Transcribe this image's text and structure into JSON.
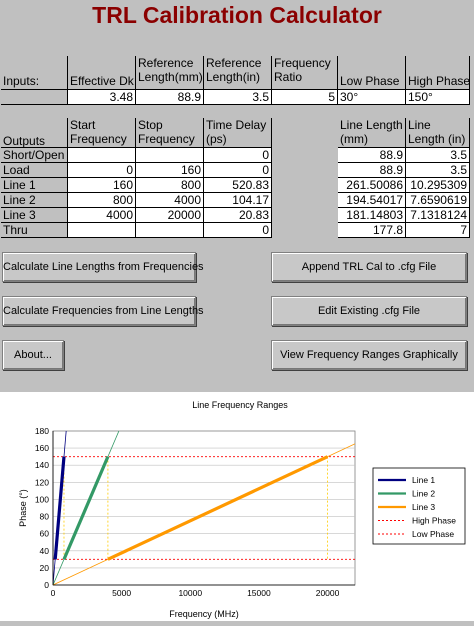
{
  "app_title": "TRL Calibration Calculator",
  "inputs": {
    "row_label": "Inputs:",
    "headers": [
      "Effective Dk",
      "Reference Length(mm)",
      "Reference Length(in)",
      "Frequency Ratio",
      "Low Phase",
      "High Phase"
    ],
    "values": [
      "3.48",
      "88.9",
      "3.5",
      "5",
      "30°",
      "150°"
    ]
  },
  "outputs": {
    "row_label": "Outputs",
    "headers": [
      "Start Frequency",
      "Stop Frequency",
      "Time Delay (ps)"
    ],
    "right_headers": [
      "Line Length (mm)",
      "Line Length (in)"
    ],
    "rows": [
      {
        "name": "Short/Open",
        "start": "",
        "stop": "",
        "delay": "0",
        "mm": "88.9",
        "in": "3.5"
      },
      {
        "name": "Load",
        "start": "0",
        "stop": "160",
        "delay": "0",
        "mm": "88.9",
        "in": "3.5"
      },
      {
        "name": "Line 1",
        "start": "160",
        "stop": "800",
        "delay": "520.83",
        "mm": "261.50086",
        "in": "10.295309"
      },
      {
        "name": "Line 2",
        "start": "800",
        "stop": "4000",
        "delay": "104.17",
        "mm": "194.54017",
        "in": "7.6590619"
      },
      {
        "name": "Line 3",
        "start": "4000",
        "stop": "20000",
        "delay": "20.83",
        "mm": "181.14803",
        "in": "7.1318124"
      },
      {
        "name": "Thru",
        "start": "",
        "stop": "",
        "delay": "0",
        "mm": "177.8",
        "in": "7"
      }
    ]
  },
  "buttons": {
    "calc_lengths": "Calculate Line Lengths from Frequencies",
    "append_cal": "Append TRL Cal to .cfg File",
    "calc_freqs": "Calculate Frequencies from Line Lengths",
    "edit_existing": "Edit Existing .cfg File",
    "about": "About...",
    "view_ranges": "View Frequency Ranges Graphically"
  },
  "chart_data": {
    "type": "line",
    "title": "Line Frequency Ranges",
    "xlabel": "Frequency (MHz)",
    "ylabel": "Phase (°)",
    "xlim": [
      0,
      22000
    ],
    "ylim": [
      0,
      180
    ],
    "x_ticks": [
      0,
      5000,
      10000,
      15000,
      20000
    ],
    "y_ticks": [
      0,
      20,
      40,
      60,
      80,
      100,
      120,
      140,
      160,
      180
    ],
    "grid": true,
    "legend": "right",
    "series": [
      {
        "name": "Line 1",
        "color": "#000080",
        "thin_line": [
          [
            0,
            0
          ],
          [
            960,
            180
          ]
        ],
        "thick_segment": [
          [
            160,
            30
          ],
          [
            800,
            150
          ]
        ]
      },
      {
        "name": "Line 2",
        "color": "#339966",
        "thin_line": [
          [
            0,
            0
          ],
          [
            4800,
            180
          ]
        ],
        "thick_segment": [
          [
            800,
            30
          ],
          [
            4000,
            150
          ]
        ]
      },
      {
        "name": "Line 3",
        "color": "#ff9900",
        "thin_line": [
          [
            0,
            0
          ],
          [
            24000,
            180
          ]
        ],
        "thick_segment": [
          [
            4000,
            30
          ],
          [
            20000,
            150
          ]
        ]
      },
      {
        "name": "High Phase",
        "color": "#ff0000",
        "dashed": true,
        "y": 150
      },
      {
        "name": "Low Phase",
        "color": "#ff0000",
        "dashed": true,
        "y": 30
      }
    ],
    "verticals": [
      800,
      4000,
      20000
    ],
    "vertical_color": "#ffcc00"
  }
}
